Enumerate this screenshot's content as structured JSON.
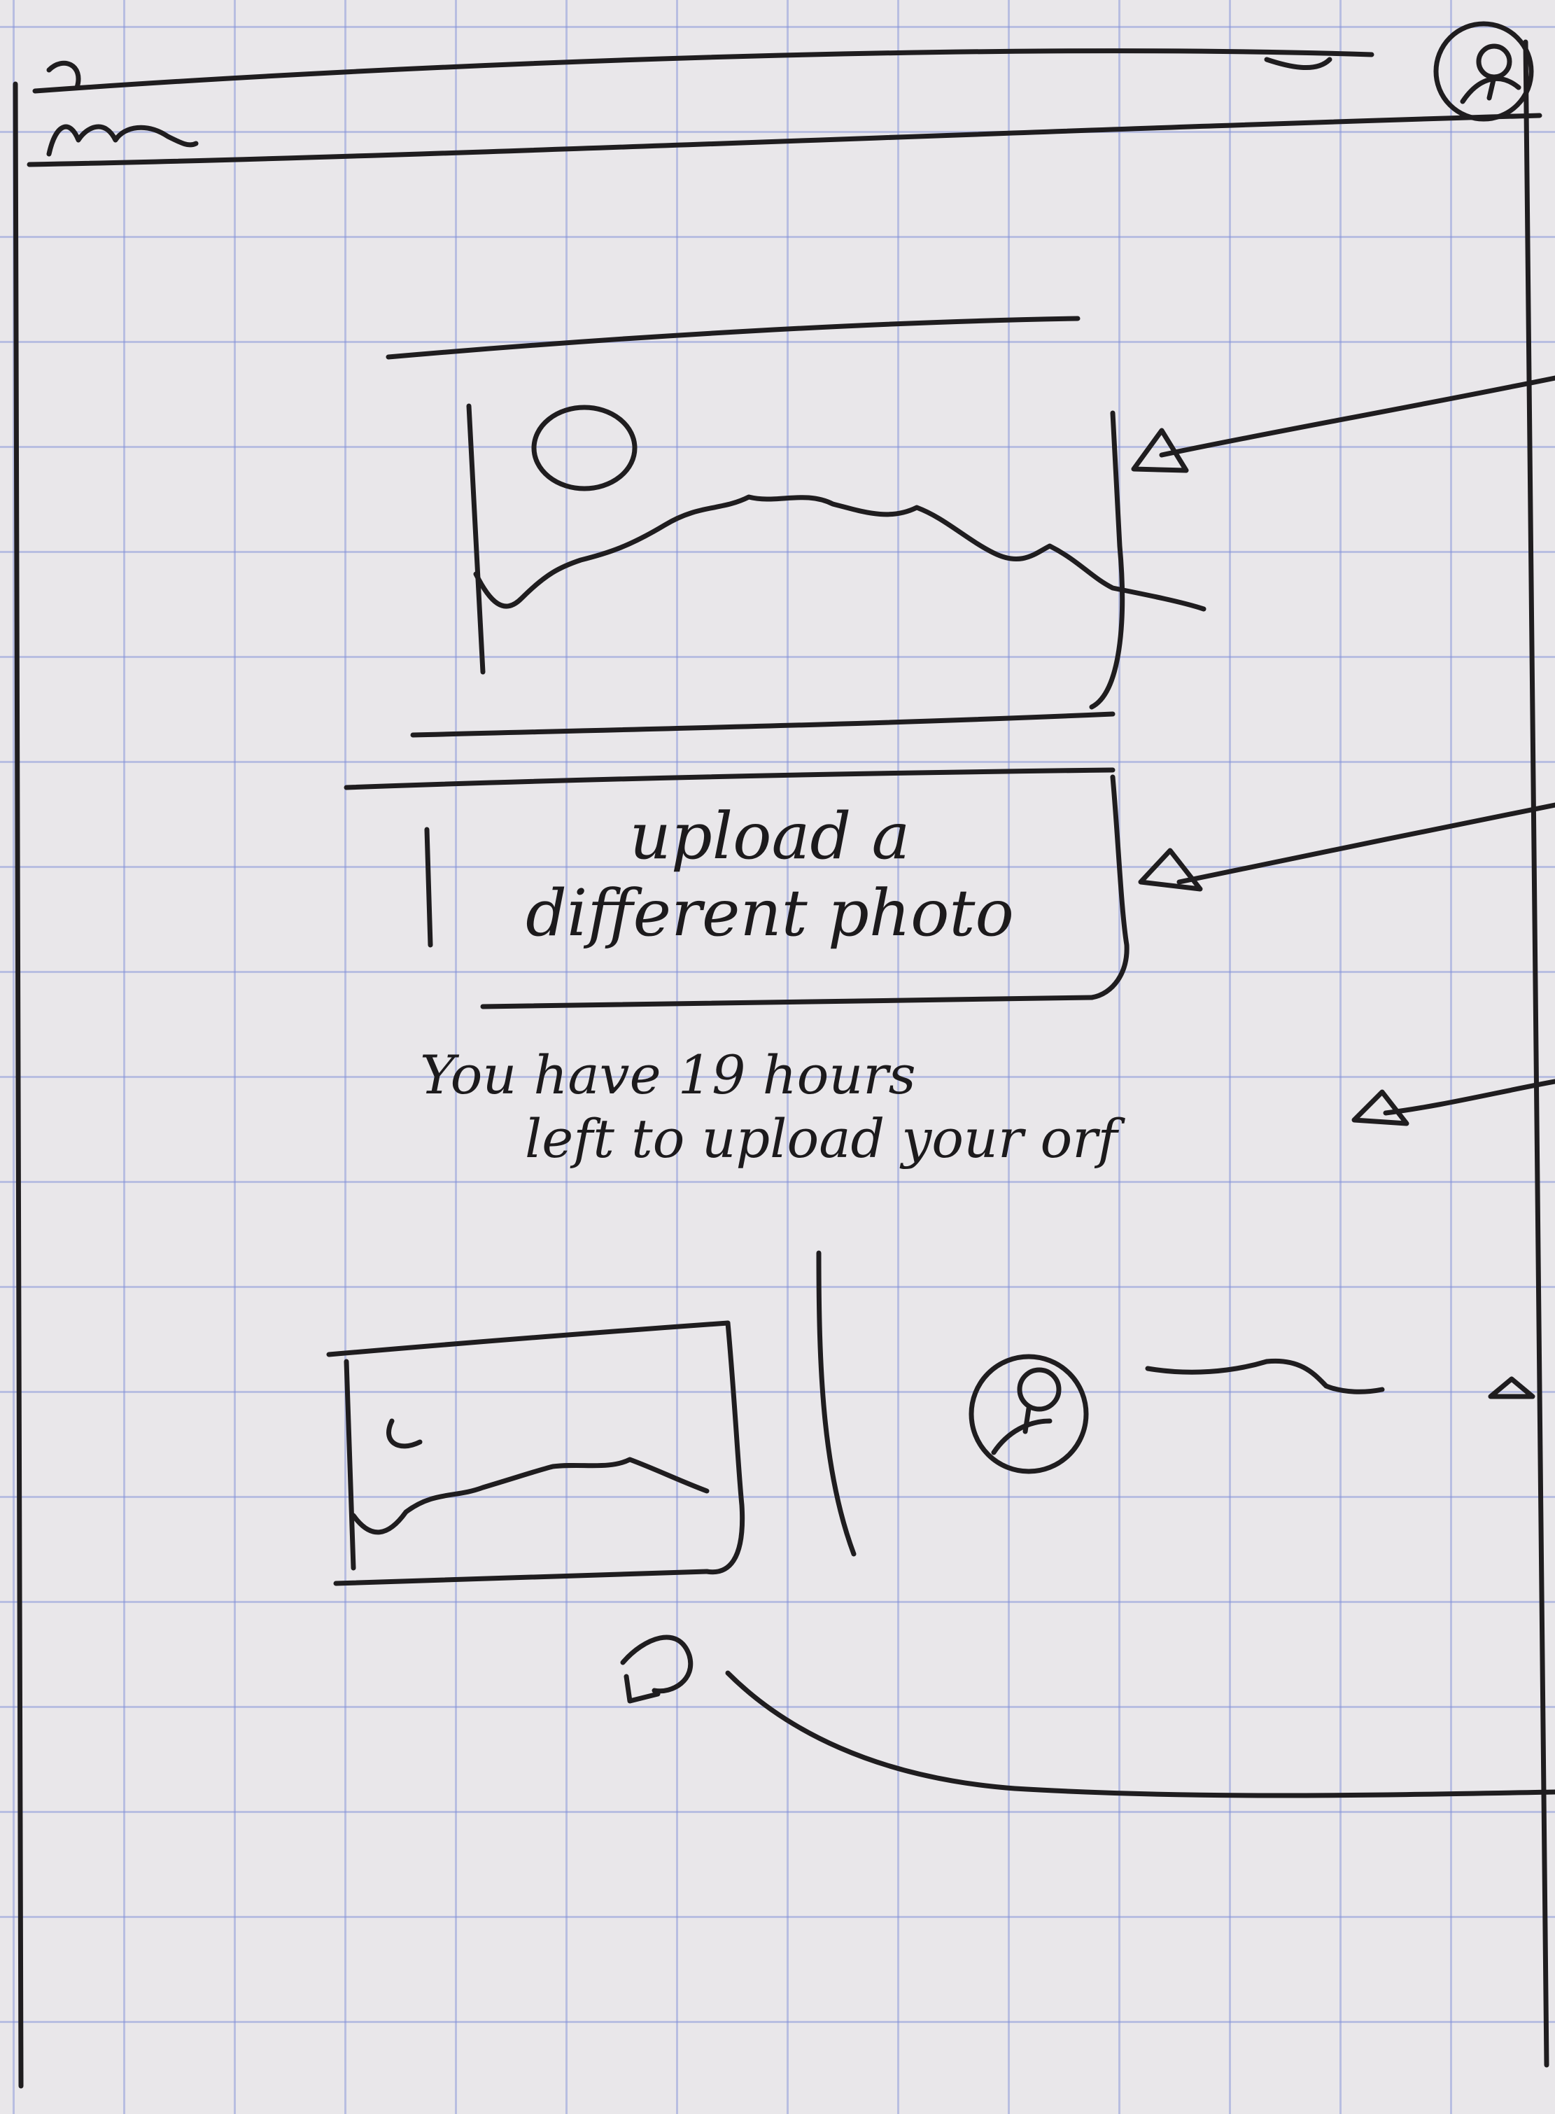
{
  "app": {
    "title": "",
    "logo_icon": "wave-logo-icon",
    "avatar_icon": "user-avatar-icon"
  },
  "preview": {
    "image_icon": "image-placeholder-icon"
  },
  "upload_button": {
    "line1": "upload a",
    "line2": "different photo"
  },
  "timer_notice": {
    "line1": "You have 19 hours",
    "line2": "left to upload your orf"
  },
  "review_row": {
    "thumbnail_icon": "image-thumbnail-icon",
    "avatar_icon": "reviewer-avatar-icon"
  },
  "colors": {
    "ink": "#1f1d1f",
    "paper": "#e9e7ea",
    "grid": "#7d8cd7"
  }
}
